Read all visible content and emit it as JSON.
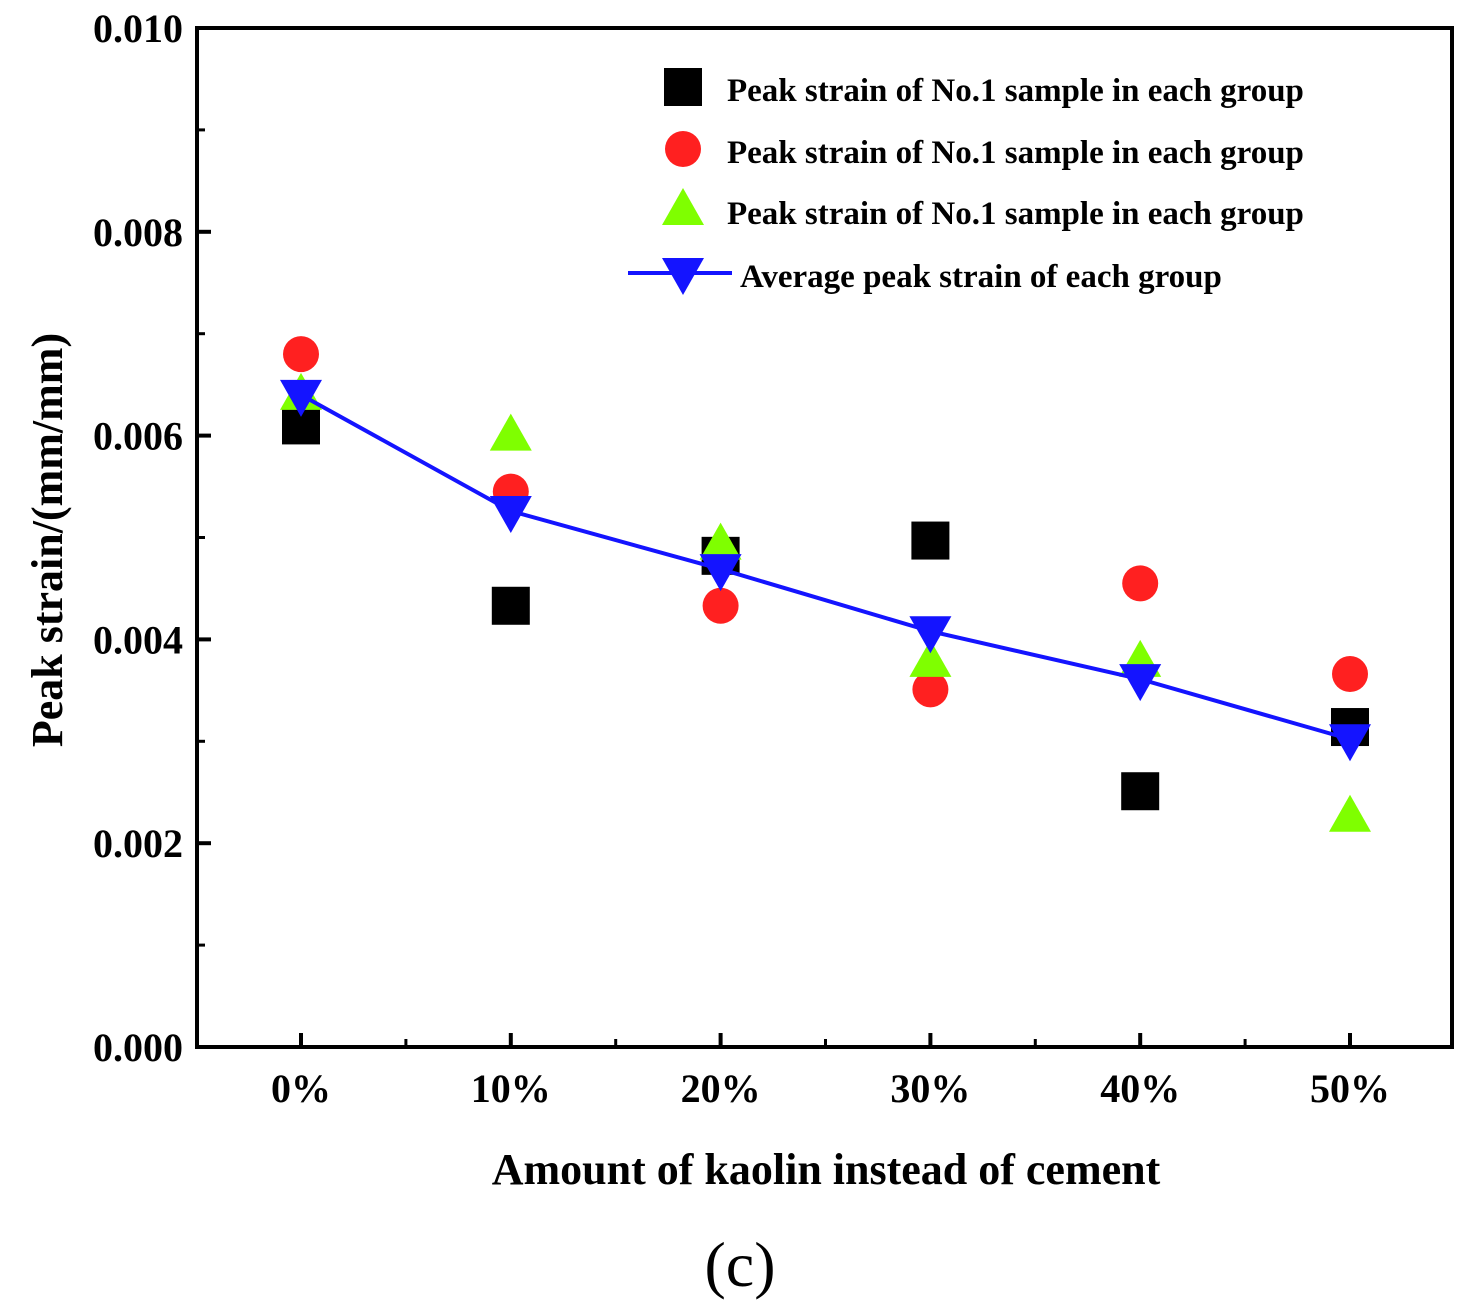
{
  "chart_data": {
    "type": "scatter",
    "xlabel": "Amount of kaolin instead of cement",
    "ylabel": "Peak strain/(mm/mm)",
    "panel_label": "(c)",
    "categories": [
      "0%",
      "10%",
      "20%",
      "30%",
      "40%",
      "50%"
    ],
    "ylim": [
      0,
      0.01
    ],
    "yticks": [
      "0.000",
      "0.002",
      "0.004",
      "0.006",
      "0.008",
      "0.010"
    ],
    "grid": false,
    "legend_position": "top-right",
    "series": [
      {
        "name": "Peak strain  of No.1 sample in each group",
        "marker": "square",
        "color": "#000000",
        "line": false,
        "values": [
          0.0061,
          0.00433,
          0.00482,
          0.00497,
          0.00251,
          0.00314
        ]
      },
      {
        "name": "Peak strain  of No.1 sample in each group",
        "marker": "circle",
        "color": "#ff2020",
        "line": false,
        "values": [
          0.0068,
          0.00545,
          0.00433,
          0.00351,
          0.00455,
          0.00366
        ]
      },
      {
        "name": "Peak strain of No.1 sample in each group",
        "marker": "triangle-up",
        "color": "#7fff00",
        "line": false,
        "values": [
          0.0064,
          0.006,
          0.00493,
          0.00378,
          0.00378,
          0.00226
        ]
      },
      {
        "name": "Average peak strain of each group",
        "marker": "triangle-down",
        "color": "#1414ff",
        "line": true,
        "values": [
          0.0064,
          0.00526,
          0.00469,
          0.00408,
          0.00361,
          0.00302
        ]
      }
    ]
  }
}
